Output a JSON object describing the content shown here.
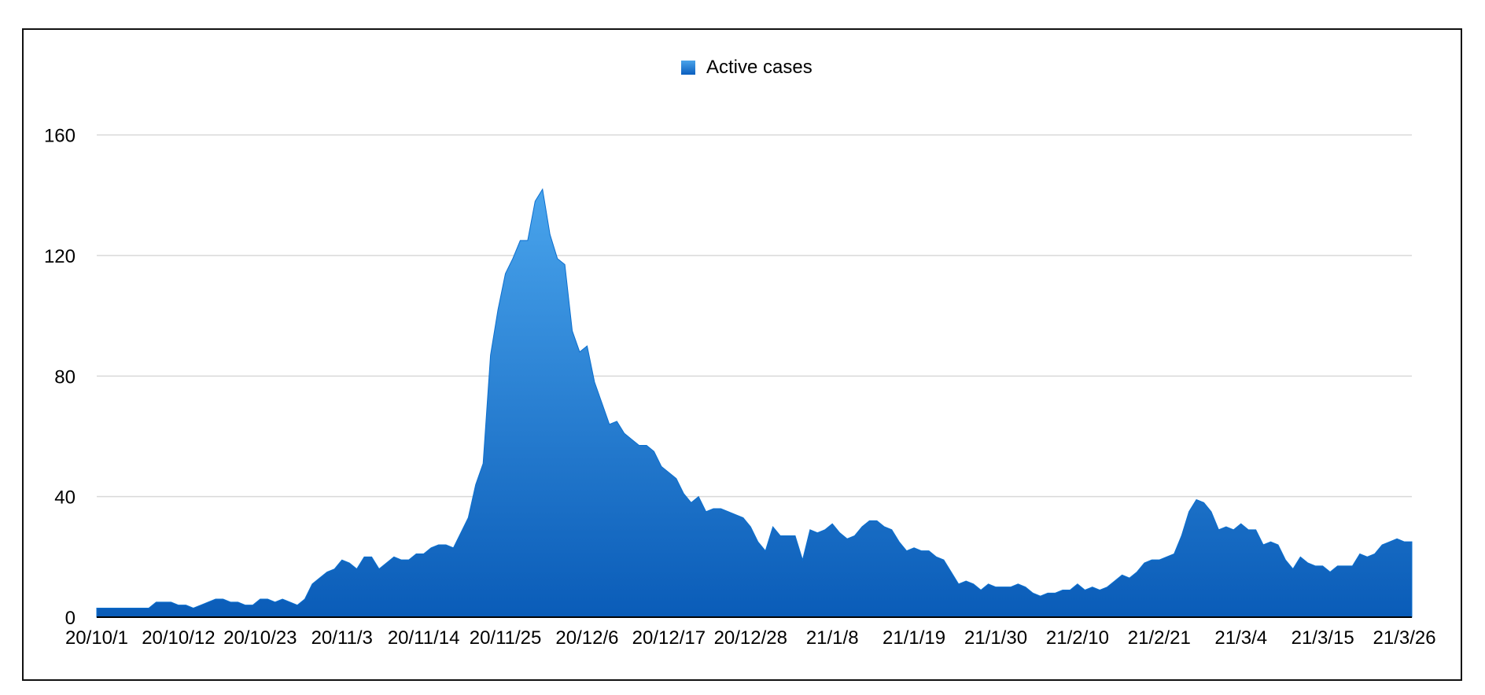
{
  "chart_data": {
    "type": "area",
    "title": "",
    "xlabel": "",
    "ylabel": "",
    "ylim": [
      0,
      180
    ],
    "grid": true,
    "legend_position": "top-center",
    "yticks": [
      0,
      40,
      80,
      120,
      160
    ],
    "xtick_labels": [
      "20/10/1",
      "20/10/12",
      "20/10/23",
      "20/11/3",
      "20/11/14",
      "20/11/25",
      "20/12/6",
      "20/12/17",
      "20/12/28",
      "21/1/8",
      "21/1/19",
      "21/1/30",
      "21/2/10",
      "21/2/21",
      "21/3/4",
      "21/3/15",
      "21/3/26"
    ],
    "x_start": "20/10/1",
    "x_end": "21/3/27",
    "series": [
      {
        "name": "Active cases",
        "values": [
          3,
          3,
          3,
          3,
          3,
          3,
          3,
          3,
          5,
          5,
          5,
          4,
          4,
          3,
          4,
          5,
          6,
          6,
          5,
          5,
          4,
          4,
          6,
          6,
          5,
          6,
          5,
          4,
          6,
          11,
          13,
          15,
          16,
          19,
          18,
          16,
          20,
          20,
          16,
          18,
          20,
          19,
          19,
          21,
          21,
          23,
          24,
          24,
          23,
          28,
          33,
          44,
          51,
          87,
          102,
          114,
          119,
          125,
          125,
          138,
          142,
          127,
          119,
          117,
          95,
          88,
          90,
          78,
          71,
          64,
          65,
          61,
          59,
          57,
          57,
          55,
          50,
          48,
          46,
          41,
          38,
          40,
          35,
          36,
          36,
          35,
          34,
          33,
          30,
          25,
          22,
          30,
          27,
          27,
          27,
          19,
          29,
          28,
          29,
          31,
          28,
          26,
          27,
          30,
          32,
          32,
          30,
          29,
          25,
          22,
          23,
          22,
          22,
          20,
          19,
          15,
          11,
          12,
          11,
          9,
          11,
          10,
          10,
          10,
          11,
          10,
          8,
          7,
          8,
          8,
          9,
          9,
          11,
          9,
          10,
          9,
          10,
          12,
          14,
          13,
          15,
          18,
          19,
          19,
          20,
          21,
          27,
          35,
          39,
          38,
          35,
          29,
          30,
          29,
          31,
          29,
          29,
          24,
          25,
          24,
          19,
          16,
          20,
          18,
          17,
          17,
          15,
          17,
          17,
          17,
          21,
          20,
          21,
          24,
          25,
          26,
          25,
          25
        ]
      }
    ]
  },
  "colors": {
    "area_top": "#49a4ec",
    "area_bottom": "#0a5cb8",
    "area_line": "#0b6fcf",
    "grid": "#d9d9d9",
    "axis": "#000000",
    "legend_swatch_top": "#4aa3ea",
    "legend_swatch_bottom": "#0b5fbf"
  },
  "legend": {
    "label": "Active cases"
  }
}
